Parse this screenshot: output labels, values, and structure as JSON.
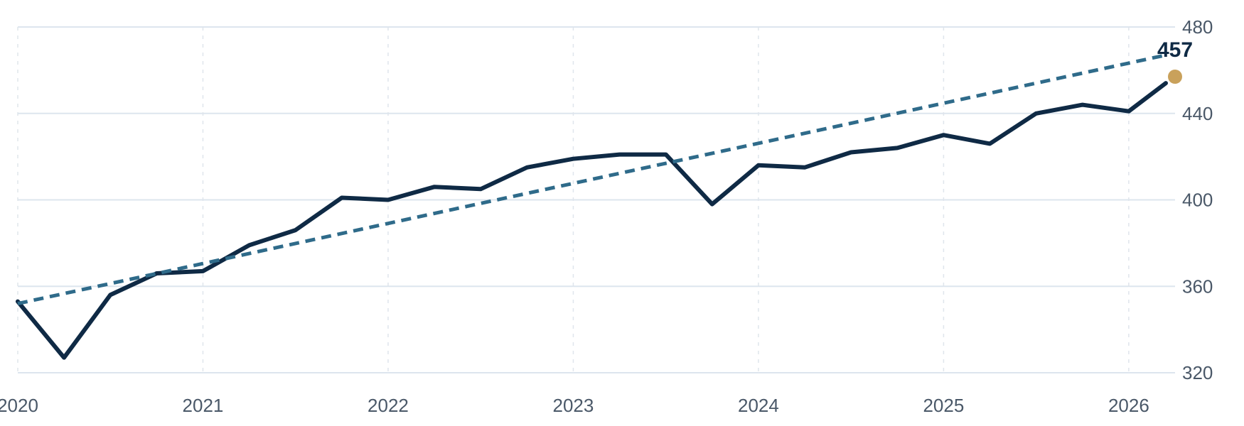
{
  "chart_data": {
    "type": "line",
    "title": "",
    "xlabel": "",
    "ylabel": "",
    "xlim": [
      2020.0,
      2026.25
    ],
    "ylim": [
      320,
      480
    ],
    "x_ticks": [
      2020,
      2021,
      2022,
      2023,
      2024,
      2025,
      2026
    ],
    "x_tick_labels": [
      "2020",
      "2021",
      "2022",
      "2023",
      "2024",
      "2025",
      "2026"
    ],
    "y_ticks": [
      320,
      360,
      400,
      440,
      480
    ],
    "y_tick_labels": [
      "320",
      "360",
      "400",
      "440",
      "480"
    ],
    "y_axis_side": "right",
    "grid": {
      "horizontal": "solid",
      "vertical": "dotted"
    },
    "legend": "none",
    "series": [
      {
        "style": "solid",
        "color": "#0f2a45",
        "x": [
          2020.0,
          2020.25,
          2020.5,
          2020.75,
          2021.0,
          2021.25,
          2021.5,
          2021.75,
          2022.0,
          2022.25,
          2022.5,
          2022.75,
          2023.0,
          2023.25,
          2023.5,
          2023.75,
          2024.0,
          2024.25,
          2024.5,
          2024.75,
          2025.0,
          2025.25,
          2025.5,
          2025.75,
          2026.0,
          2026.2
        ],
        "y": [
          353,
          327,
          356,
          366,
          367,
          379,
          386,
          401,
          400,
          406,
          405,
          415,
          419,
          421,
          421,
          398,
          416,
          415,
          422,
          424,
          430,
          426,
          440,
          444,
          441,
          454
        ]
      },
      {
        "style": "dashed",
        "color": "#2f6b8a",
        "x": [
          2020.0,
          2026.2
        ],
        "y": [
          352,
          467
        ]
      }
    ],
    "last_point": {
      "x": 2026.25,
      "y": 457,
      "label": "457",
      "marker_color": "#c9a15b",
      "label_color": "#0f2a45"
    }
  }
}
